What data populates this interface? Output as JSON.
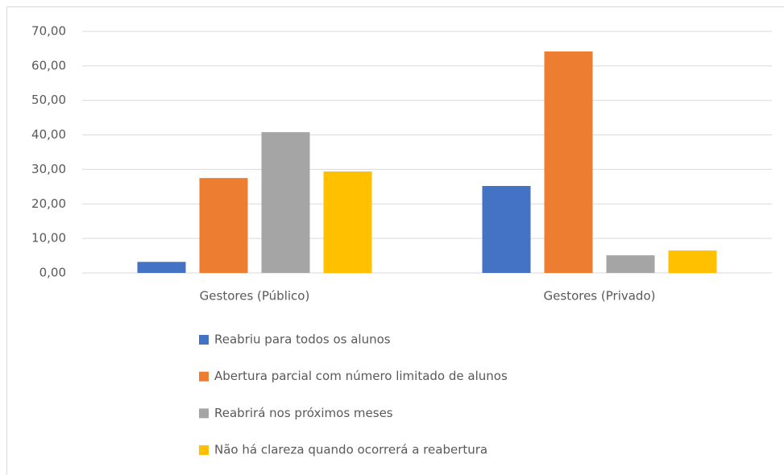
{
  "chart_data": {
    "type": "bar",
    "categories": [
      "Gestores (Público)",
      "Gestores (Privado)"
    ],
    "series": [
      {
        "name": "Reabriu para todos  os alunos",
        "color": "#4472c4",
        "values": [
          3.2,
          25.2
        ]
      },
      {
        "name": "Abertura parcial com número limitado de alunos",
        "color": "#ed7d31",
        "values": [
          27.5,
          64.2
        ]
      },
      {
        "name": "Reabrirá nos próximos meses",
        "color": "#a5a5a5",
        "values": [
          40.8,
          5.1
        ]
      },
      {
        "name": "Não há clareza quando ocorrerá a reabertura",
        "color": "#ffc000",
        "values": [
          29.4,
          6.5
        ]
      }
    ],
    "ylim": [
      0,
      70
    ],
    "yticks": [
      {
        "value": 0,
        "label": "0,00"
      },
      {
        "value": 10,
        "label": "10,00"
      },
      {
        "value": 20,
        "label": "20,00"
      },
      {
        "value": 30,
        "label": "30,00"
      },
      {
        "value": 40,
        "label": "40,00"
      },
      {
        "value": 50,
        "label": "50,00"
      },
      {
        "value": 60,
        "label": "60,00"
      },
      {
        "value": 70,
        "label": "70,00"
      }
    ],
    "grid": true,
    "legend": "bottom"
  }
}
